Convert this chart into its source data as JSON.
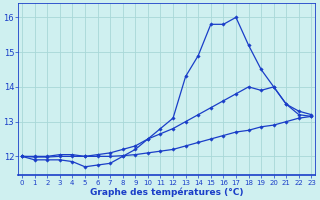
{
  "line1_x": [
    0,
    1,
    2,
    3,
    4,
    5,
    6,
    7,
    8,
    9,
    10,
    11,
    12,
    13,
    14,
    15,
    16,
    17,
    18,
    19,
    20,
    21,
    22,
    23
  ],
  "line1_y": [
    12.0,
    11.9,
    11.9,
    11.9,
    11.85,
    11.7,
    11.75,
    11.8,
    12.0,
    12.2,
    12.5,
    12.8,
    13.1,
    14.3,
    14.9,
    15.8,
    15.8,
    16.0,
    15.2,
    14.5,
    14.0,
    13.5,
    13.2,
    13.15
  ],
  "line2_x": [
    0,
    1,
    2,
    3,
    4,
    5,
    6,
    7,
    8,
    9,
    10,
    11,
    12,
    13,
    14,
    15,
    16,
    17,
    18,
    19,
    20,
    21,
    22,
    23
  ],
  "line2_y": [
    12.0,
    12.0,
    12.0,
    12.05,
    12.05,
    12.0,
    12.05,
    12.1,
    12.2,
    12.3,
    12.5,
    12.65,
    12.8,
    13.0,
    13.2,
    13.4,
    13.6,
    13.8,
    14.0,
    13.9,
    14.0,
    13.5,
    13.3,
    13.2
  ],
  "line3_x": [
    0,
    1,
    2,
    3,
    4,
    5,
    6,
    7,
    8,
    9,
    10,
    11,
    12,
    13,
    14,
    15,
    16,
    17,
    18,
    19,
    20,
    21,
    22,
    23
  ],
  "line3_y": [
    12.0,
    11.98,
    11.98,
    12.0,
    12.0,
    12.0,
    12.0,
    12.0,
    12.02,
    12.05,
    12.1,
    12.15,
    12.2,
    12.3,
    12.4,
    12.5,
    12.6,
    12.7,
    12.75,
    12.85,
    12.9,
    13.0,
    13.1,
    13.15
  ],
  "line_color": "#1a3ec8",
  "marker": "D",
  "markersize": 1.8,
  "linewidth": 0.9,
  "bg_color": "#cff0f0",
  "grid_color": "#a8d8d8",
  "xlabel": "Graphe des températures (°C)",
  "xlabel_color": "#1a3ec8",
  "xlabel_fontsize": 6.5,
  "xtick_fontsize": 5.0,
  "ytick_fontsize": 6.0,
  "xticks": [
    0,
    1,
    2,
    3,
    4,
    5,
    6,
    7,
    8,
    9,
    10,
    11,
    12,
    13,
    14,
    15,
    16,
    17,
    18,
    19,
    20,
    21,
    22,
    23
  ],
  "yticks": [
    12,
    13,
    14,
    15,
    16
  ],
  "ylim": [
    11.45,
    16.4
  ],
  "xlim": [
    -0.3,
    23.3
  ]
}
